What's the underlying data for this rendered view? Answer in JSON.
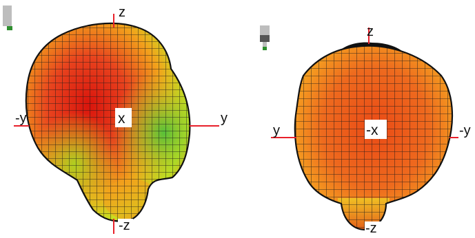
{
  "panels": [
    {
      "id": "view-front",
      "center_label": "x",
      "axis_labels": {
        "top": "z",
        "bottom": "-z",
        "left": "-y",
        "right": "y"
      },
      "colors": {
        "main": "#e8431e",
        "hot": "#d9140c",
        "warm": "#f2a21c",
        "cool": "#c8e020",
        "green": "#5fc93a"
      }
    },
    {
      "id": "view-back",
      "center_label": "-x",
      "axis_labels": {
        "top": "z",
        "bottom": "-z",
        "left": "y",
        "right": "-y"
      },
      "colors": {
        "main": "#ee5a1e",
        "hot": "#e33a12",
        "warm": "#f5a020",
        "cool": "#e6c020",
        "green": "#5fc93a"
      }
    }
  ],
  "colors": {
    "axis_line": "#e8202a",
    "mesh": "#1a1a1a",
    "icon_gray": "#bdbdbd",
    "icon_dark": "#555555",
    "icon_green": "#2f8f2f"
  }
}
